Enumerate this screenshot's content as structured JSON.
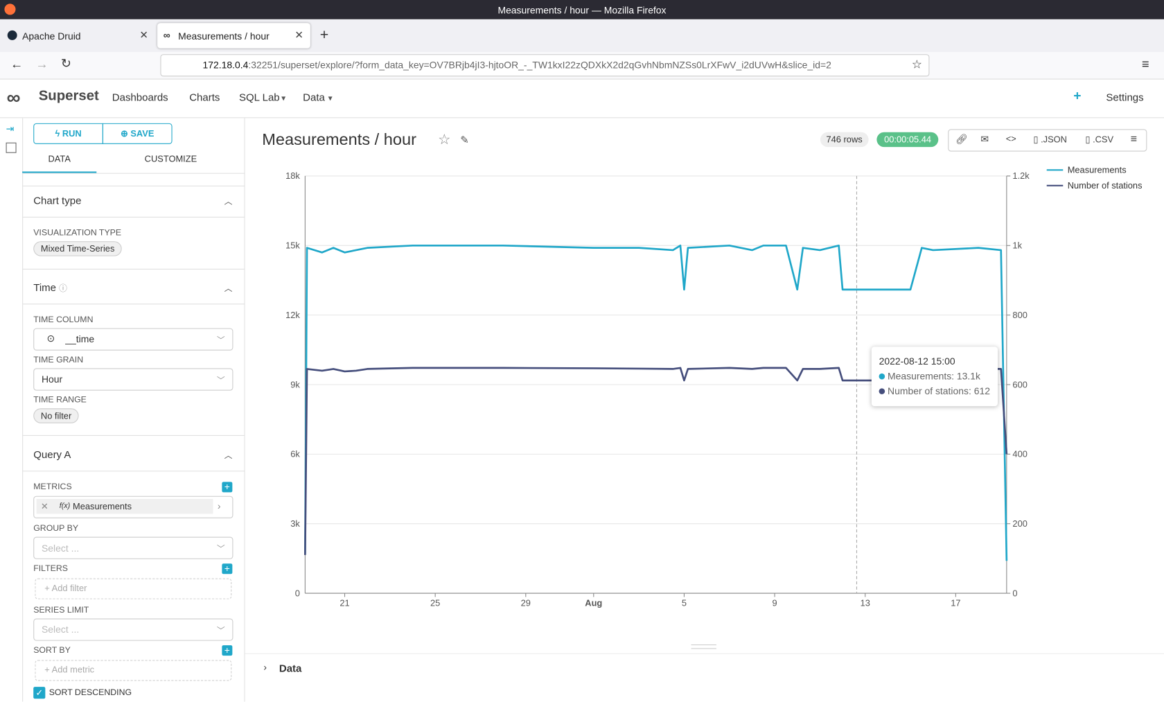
{
  "browser": {
    "window_title": "Measurements / hour — Mozilla Firefox",
    "tabs": [
      "Apache Druid",
      "Measurements / hour"
    ],
    "url_host": "172.18.0.4",
    "url_rest": ":32251/superset/explore/?form_data_key=OV7BRjb4jI3-hjtoOR_-_TW1kxI22zQDXkX2d2qGvhNbmNZSs0LrXFwV_i2dUVwH&slice_id=2"
  },
  "nav": {
    "brand": "Superset",
    "items": [
      "Dashboards",
      "Charts",
      "SQL Lab",
      "Data"
    ],
    "settings": "Settings"
  },
  "sidebar": {
    "run": "RUN",
    "save": "SAVE",
    "tabs": [
      "DATA",
      "CUSTOMIZE"
    ],
    "chart_type": {
      "heading": "Chart type",
      "label": "VISUALIZATION TYPE",
      "value": "Mixed Time-Series"
    },
    "time": {
      "heading": "Time",
      "column_label": "TIME COLUMN",
      "column": "__time",
      "grain_label": "TIME GRAIN",
      "grain": "Hour",
      "range_label": "TIME RANGE",
      "range": "No filter"
    },
    "query": {
      "heading": "Query A",
      "metrics_label": "METRICS",
      "metric_fx": "f(x)",
      "metric": "Measurements",
      "group_by_label": "GROUP BY",
      "group_by_placeholder": "Select ...",
      "filters_label": "FILTERS",
      "add_filter": "Add filter",
      "series_limit_label": "SERIES LIMIT",
      "series_limit_placeholder": "Select ...",
      "sort_by_label": "SORT BY",
      "add_metric": "Add metric",
      "sort_desc": "SORT DESCENDING"
    }
  },
  "header": {
    "title": "Measurements / hour",
    "rows": "746 rows",
    "time": "00:00:05.44",
    "json": ".JSON",
    "csv": ".CSV"
  },
  "data_panel": "Data",
  "chart_data": {
    "type": "line",
    "x": [
      "2022-07-19 06:00",
      "2022-07-19 08:00",
      "2022-07-20 00:00",
      "2022-07-20 12:00",
      "2022-07-21 00:00",
      "2022-07-21 12:00",
      "2022-07-22 00:00",
      "2022-07-24 00:00",
      "2022-07-28 00:00",
      "2022-08-01 00:00",
      "2022-08-03 00:00",
      "2022-08-04 12:00",
      "2022-08-04 20:00",
      "2022-08-05 00:00",
      "2022-08-05 04:00",
      "2022-08-07 00:00",
      "2022-08-08 00:00",
      "2022-08-08 12:00",
      "2022-08-09 12:00",
      "2022-08-10 00:00",
      "2022-08-10 06:00",
      "2022-08-11 00:00",
      "2022-08-11 20:00",
      "2022-08-12 00:00",
      "2022-08-12 15:00",
      "2022-08-15 00:00",
      "2022-08-15 12:00",
      "2022-08-16 00:00",
      "2022-08-18 00:00",
      "2022-08-19 00:00",
      "2022-08-19 06:00"
    ],
    "series": [
      {
        "name": "Measurements",
        "color": "#20a7c9",
        "values": [
          1700,
          14900,
          14700,
          14900,
          14700,
          14800,
          14900,
          15000,
          15000,
          14900,
          14900,
          14800,
          15000,
          13100,
          14900,
          15000,
          14800,
          15000,
          15000,
          13100,
          14900,
          14800,
          15000,
          13100,
          13100,
          13100,
          14900,
          14800,
          14900,
          14800,
          1400
        ]
      },
      {
        "name": "Number of stations",
        "color": "#454e7c",
        "axis": "y2",
        "values": [
          110,
          645,
          640,
          645,
          638,
          640,
          645,
          648,
          648,
          647,
          646,
          645,
          648,
          612,
          645,
          648,
          645,
          648,
          648,
          612,
          645,
          645,
          648,
          612,
          612,
          612,
          645,
          645,
          645,
          645,
          400
        ]
      }
    ],
    "xlim": [
      "2022-07-19 06:00",
      "2022-08-19 06:00"
    ],
    "xticks": [
      {
        "value": "2022-07-21 00:00",
        "label": "21"
      },
      {
        "value": "2022-07-25 00:00",
        "label": "25"
      },
      {
        "value": "2022-07-29 00:00",
        "label": "29"
      },
      {
        "value": "2022-08-01 00:00",
        "label": "Aug"
      },
      {
        "value": "2022-08-05 00:00",
        "label": "5"
      },
      {
        "value": "2022-08-09 00:00",
        "label": "9"
      },
      {
        "value": "2022-08-13 00:00",
        "label": "13"
      },
      {
        "value": "2022-08-17 00:00",
        "label": "17"
      }
    ],
    "ylim": [
      0,
      18000
    ],
    "yticks": [
      0,
      {
        "value": 3000,
        "label": "3k"
      },
      {
        "value": 6000,
        "label": "6k"
      },
      {
        "value": 9000,
        "label": "9k"
      },
      {
        "value": 12000,
        "label": "12k"
      },
      {
        "value": 15000,
        "label": "15k"
      },
      {
        "value": 18000,
        "label": "18k"
      }
    ],
    "y2lim": [
      0,
      1200
    ],
    "y2ticks": [
      0,
      200,
      400,
      600,
      800,
      {
        "value": 1000,
        "label": "1k"
      },
      {
        "value": 1200,
        "label": "1.2k"
      }
    ],
    "grid": true,
    "legend": "top-right",
    "tooltip": {
      "title": "2022-08-12 15:00",
      "rows": [
        "Measurements: 13.1k",
        "Number of stations: 612"
      ]
    }
  }
}
